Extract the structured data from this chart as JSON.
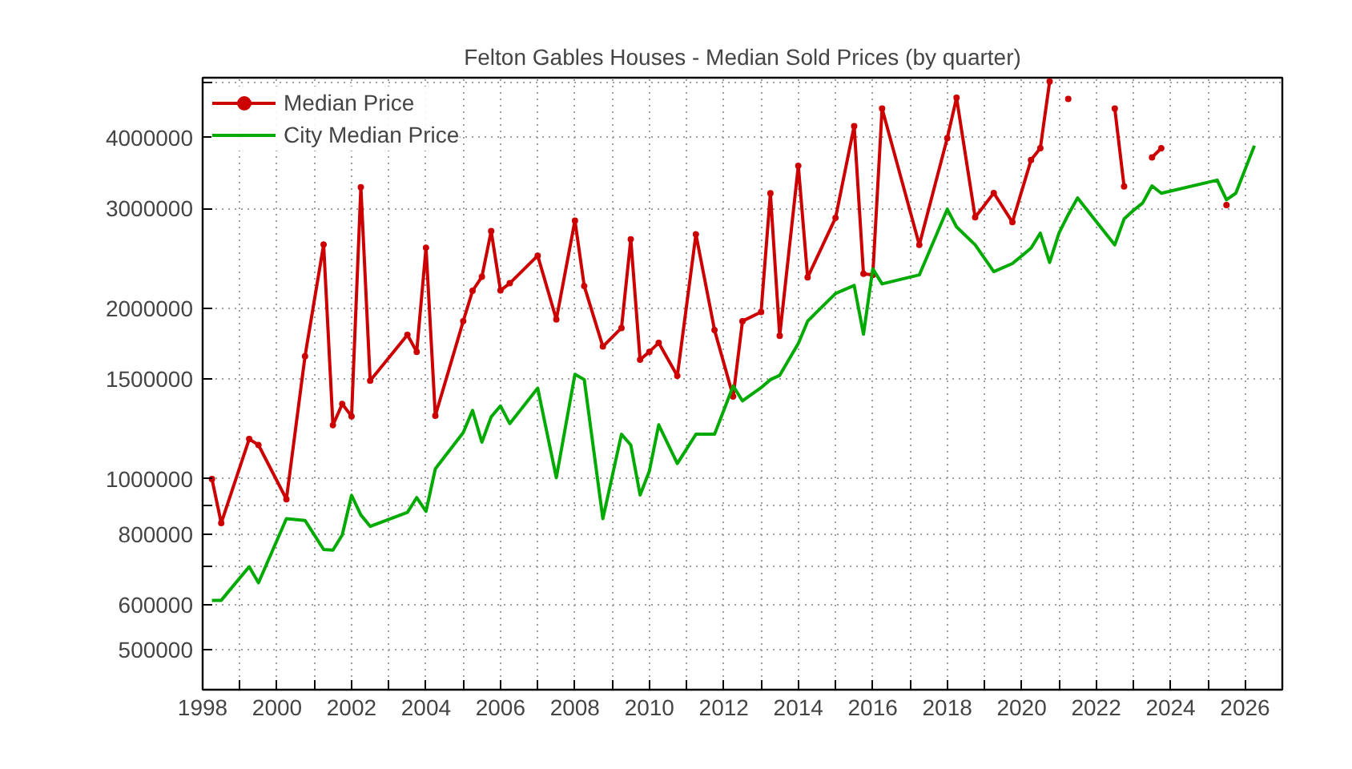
{
  "chart_data": {
    "type": "line",
    "title": "Felton Gables Houses - Median Sold Prices (by quarter)",
    "log": "y",
    "grid": true,
    "legend": "top left",
    "xlim": [
      1998,
      2027
    ],
    "ylim": [
      425000,
      5100000
    ],
    "xticks": [
      1998,
      {
        "value": 1999,
        "label": null
      },
      2000,
      {
        "value": 2001,
        "label": null
      },
      2002,
      {
        "value": 2003,
        "label": null
      },
      2004,
      {
        "value": 2005,
        "label": null
      },
      2006,
      {
        "value": 2007,
        "label": null
      },
      2008,
      {
        "value": 2009,
        "label": null
      },
      2010,
      {
        "value": 2011,
        "label": null
      },
      2012,
      {
        "value": 2013,
        "label": null
      },
      2014,
      {
        "value": 2015,
        "label": null
      },
      2016,
      {
        "value": 2017,
        "label": null
      },
      2018,
      {
        "value": 2019,
        "label": null
      },
      2020,
      {
        "value": 2021,
        "label": null
      },
      2022,
      {
        "value": 2023,
        "label": null
      },
      2024,
      {
        "value": 2025,
        "label": null
      },
      2026
    ],
    "yticks": [
      500000,
      600000,
      {
        "value": 700000,
        "label": null
      },
      800000,
      {
        "value": 900000,
        "label": null
      },
      1000000,
      1500000,
      2000000,
      3000000,
      4000000,
      {
        "value": 5000000,
        "label": null
      }
    ],
    "series": [
      {
        "name": "Median Price",
        "color": "#cc0000",
        "marker": "circle",
        "x": [
          1998.25,
          1998.5,
          1999.25,
          1999.5,
          2000.25,
          2000.75,
          2001.25,
          2001.5,
          2001.75,
          2002.0,
          2002.25,
          2002.5,
          2003.5,
          2003.75,
          2004.0,
          2004.25,
          2005.0,
          2005.25,
          2005.5,
          2005.75,
          2006.0,
          2006.25,
          2007.0,
          2007.5,
          2008.0,
          2008.25,
          2008.75,
          2009.25,
          2009.5,
          2009.75,
          2010.0,
          2010.25,
          2010.75,
          2011.25,
          2011.75,
          2012.25,
          2012.5,
          2013.0,
          2013.25,
          2013.5,
          2014.0,
          2014.25,
          2015.0,
          2015.5,
          2015.75,
          2016.0,
          2016.25,
          2017.25,
          2018.0,
          2018.25,
          2018.75,
          2019.25,
          2019.75,
          2020.25,
          2020.5,
          2020.75,
          2021.0,
          2021.25,
          2021.5,
          2022.5,
          2022.75,
          2023.25,
          2023.5,
          2023.75,
          2025.25,
          2025.5
        ],
        "values": [
          1000000,
          836000,
          1176000,
          1148000,
          921000,
          1646000,
          2590000,
          1244000,
          1356000,
          1290000,
          3270000,
          1490000,
          1795000,
          1676000,
          2557000,
          1293000,
          1898000,
          2147000,
          2272000,
          2735000,
          2150000,
          2214000,
          2476000,
          1911000,
          2855000,
          2189000,
          1712000,
          1846000,
          2647000,
          1623000,
          1676000,
          1738000,
          1520000,
          2700000,
          1830000,
          1398000,
          1898000,
          1970000,
          3190000,
          1788000,
          3566000,
          2267000,
          2887000,
          4190000,
          2300000,
          2290000,
          4500000,
          2587000,
          3990000,
          4700000,
          2893000,
          3194000,
          2837000,
          3650000,
          3830000,
          5020000,
          null,
          4680000,
          null,
          4500000,
          3280000,
          null,
          3690000,
          3830000,
          null,
          3040000
        ]
      },
      {
        "name": "City Median Price",
        "color": "#00aa00",
        "marker": "none",
        "x": [
          1998.25,
          1998.5,
          1999.25,
          1999.5,
          2000.25,
          2000.75,
          2001.25,
          2001.5,
          2001.75,
          2002.0,
          2002.25,
          2002.5,
          2003.5,
          2003.75,
          2004.0,
          2004.25,
          2005.0,
          2005.25,
          2005.5,
          2005.75,
          2006.0,
          2006.25,
          2007.0,
          2007.5,
          2008.0,
          2008.25,
          2008.75,
          2009.25,
          2009.5,
          2009.75,
          2010.0,
          2010.25,
          2010.75,
          2011.25,
          2011.75,
          2012.25,
          2012.5,
          2013.0,
          2013.25,
          2013.5,
          2014.0,
          2014.25,
          2015.0,
          2015.5,
          2015.75,
          2016.0,
          2016.25,
          2017.25,
          2018.0,
          2018.25,
          2018.75,
          2019.25,
          2019.75,
          2020.25,
          2020.5,
          2020.75,
          2021.0,
          2021.25,
          2021.5,
          2022.5,
          2022.75,
          2023.0,
          2023.25,
          2023.5,
          2023.75,
          2025.25,
          2025.5,
          2025.75,
          2026.25
        ],
        "values": [
          611000,
          611000,
          700000,
          656000,
          851000,
          845000,
          751000,
          749000,
          797000,
          936000,
          864000,
          825000,
          873000,
          927000,
          877000,
          1042000,
          1207000,
          1321000,
          1161000,
          1287000,
          1345000,
          1252000,
          1446000,
          1005000,
          1530000,
          1497000,
          851000,
          1199000,
          1148000,
          937000,
          1033000,
          1246000,
          1065000,
          1199000,
          1199000,
          1459000,
          1373000,
          1449000,
          1497000,
          1523000,
          1734000,
          1898000,
          2124000,
          2194000,
          1800000,
          2347000,
          2208000,
          2290000,
          2990000,
          2783000,
          2587000,
          2321000,
          2398000,
          2553000,
          2713000,
          2409000,
          2713000,
          2925000,
          3130000,
          2587000,
          2874000,
          2975000,
          3067000,
          3287000,
          3190000,
          3365000,
          3107000,
          3190000,
          3870000
        ]
      }
    ]
  }
}
